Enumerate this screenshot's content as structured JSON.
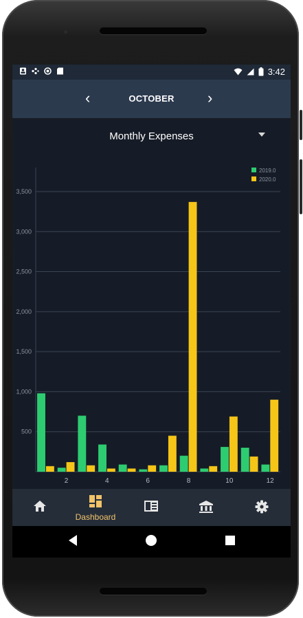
{
  "status_bar": {
    "time": "3:42",
    "left_icons": [
      "portrait-icon",
      "cast-dots-icon",
      "sync-circle-icon",
      "sd-card-icon"
    ],
    "right_icons": [
      "wifi-icon",
      "signal-icon",
      "battery-icon"
    ]
  },
  "month_nav": {
    "prev": "‹",
    "month": "OCTOBER",
    "next": "›"
  },
  "report_selector": {
    "selected": "Monthly Expenses"
  },
  "chart_data": {
    "type": "bar",
    "x": [
      1,
      2,
      3,
      4,
      5,
      6,
      7,
      8,
      9,
      10,
      11,
      12
    ],
    "xticks": [
      "2",
      "4",
      "6",
      "8",
      "10",
      "12"
    ],
    "yticks": [
      "500",
      "1,000",
      "1,500",
      "2,000",
      "2,500",
      "3,000",
      "3,500"
    ],
    "ylim": [
      0,
      3800
    ],
    "grid": true,
    "legend_position": "top-right",
    "series": [
      {
        "name": "2019.0",
        "color": "#2ecc71",
        "values": [
          980,
          50,
          700,
          340,
          90,
          30,
          80,
          200,
          40,
          310,
          300,
          90
        ]
      },
      {
        "name": "2020.0",
        "color": "#f5c518",
        "values": [
          70,
          120,
          80,
          40,
          40,
          80,
          450,
          3370,
          70,
          690,
          190,
          900
        ]
      }
    ]
  },
  "bottom_nav": {
    "items": [
      {
        "icon": "home-icon"
      },
      {
        "icon": "dashboard-icon",
        "label": "Dashboard",
        "active": true
      },
      {
        "icon": "ledger-icon"
      },
      {
        "icon": "bank-icon"
      },
      {
        "icon": "settings-icon"
      }
    ],
    "active_color": "#f2c46a",
    "inactive_color": "#e6e6e6"
  },
  "system_nav": {
    "buttons": [
      "back-icon",
      "home-circle-icon",
      "recents-icon"
    ]
  }
}
